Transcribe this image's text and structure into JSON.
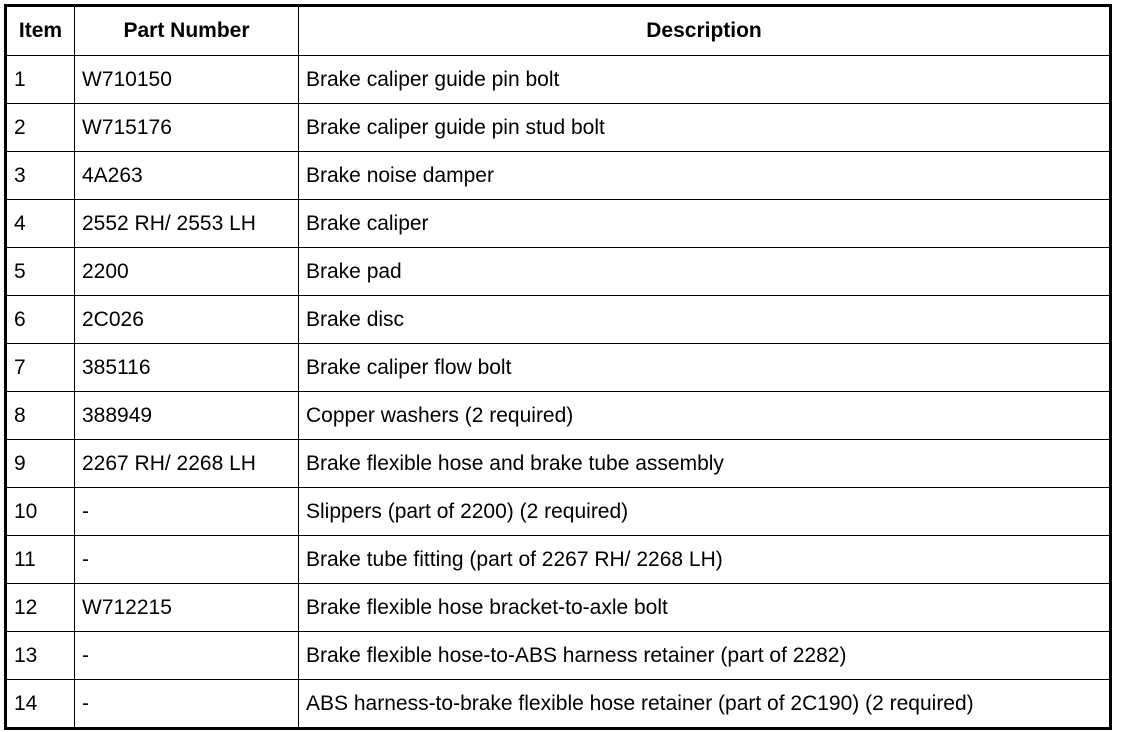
{
  "table": {
    "headers": [
      "Item",
      "Part Number",
      "Description"
    ],
    "rows": [
      [
        "1",
        "W710150",
        "Brake caliper guide pin bolt"
      ],
      [
        "2",
        "W715176",
        "Brake caliper guide pin stud bolt"
      ],
      [
        "3",
        "4A263",
        "Brake noise damper"
      ],
      [
        "4",
        "2552 RH/ 2553 LH",
        "Brake caliper"
      ],
      [
        "5",
        "2200",
        "Brake pad"
      ],
      [
        "6",
        "2C026",
        "Brake disc"
      ],
      [
        "7",
        "385116",
        "Brake caliper flow bolt"
      ],
      [
        "8",
        "388949",
        "Copper washers (2 required)"
      ],
      [
        "9",
        "2267 RH/ 2268 LH",
        "Brake flexible hose and brake tube assembly"
      ],
      [
        "10",
        "-",
        "Slippers (part of 2200) (2 required)"
      ],
      [
        "11",
        "-",
        "Brake tube fitting (part of 2267 RH/ 2268 LH)"
      ],
      [
        "12",
        "W712215",
        "Brake flexible hose bracket-to-axle bolt"
      ],
      [
        "13",
        "-",
        "Brake flexible hose-to-ABS harness retainer (part of 2282)"
      ],
      [
        "14",
        "-",
        "ABS harness-to-brake flexible hose retainer (part of 2C190) (2 required)"
      ]
    ]
  }
}
